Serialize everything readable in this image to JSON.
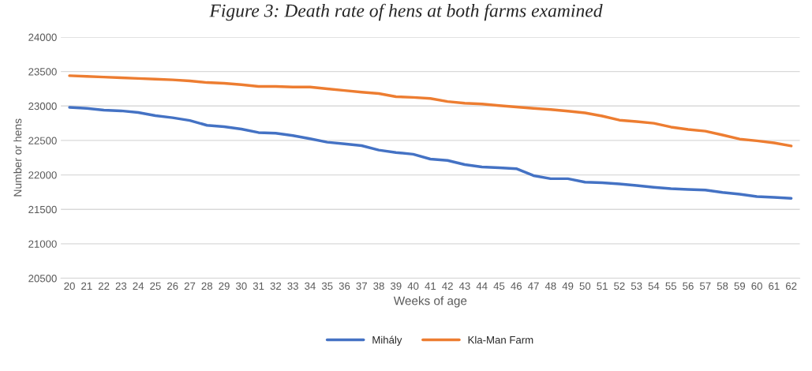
{
  "chart_data": {
    "type": "line",
    "title": "Figure 3: Death rate of hens at both farms examined",
    "xlabel": "Weeks of age",
    "ylabel": "Number or hens",
    "categories": [
      "20",
      "21",
      "22",
      "23",
      "24",
      "25",
      "26",
      "27",
      "28",
      "29",
      "30",
      "31",
      "32",
      "33",
      "34",
      "35",
      "36",
      "37",
      "38",
      "39",
      "40",
      "41",
      "42",
      "43",
      "44",
      "45",
      "46",
      "47",
      "48",
      "49",
      "50",
      "51",
      "52",
      "53",
      "54",
      "55",
      "56",
      "57",
      "58",
      "59",
      "60",
      "61",
      "62"
    ],
    "series": [
      {
        "name": "Mihály",
        "color": "#4472c4",
        "values": [
          22980,
          22965,
          22940,
          22930,
          22905,
          22860,
          22830,
          22790,
          22720,
          22700,
          22665,
          22615,
          22605,
          22570,
          22525,
          22475,
          22450,
          22425,
          22360,
          22325,
          22300,
          22230,
          22210,
          22150,
          22115,
          22105,
          22090,
          21990,
          21945,
          21945,
          21895,
          21885,
          21870,
          21845,
          21820,
          21800,
          21790,
          21780,
          21745,
          21720,
          21685,
          21675,
          21660
        ]
      },
      {
        "name": "Kla-Man Farm",
        "color": "#ed7d31",
        "values": [
          23440,
          23430,
          23420,
          23410,
          23400,
          23390,
          23380,
          23365,
          23340,
          23330,
          23310,
          23285,
          23285,
          23275,
          23275,
          23250,
          23225,
          23200,
          23180,
          23135,
          23125,
          23110,
          23065,
          23040,
          23030,
          23005,
          22985,
          22965,
          22950,
          22925,
          22900,
          22855,
          22795,
          22775,
          22750,
          22695,
          22660,
          22635,
          22580,
          22520,
          22495,
          22465,
          22420
        ]
      }
    ],
    "ylim": [
      20500,
      24000
    ],
    "yticks": [
      20500,
      21000,
      21500,
      22000,
      22500,
      23000,
      23500,
      24000
    ],
    "grid": "y",
    "legend": "bottom",
    "marker": "none",
    "line_style": "solid"
  }
}
